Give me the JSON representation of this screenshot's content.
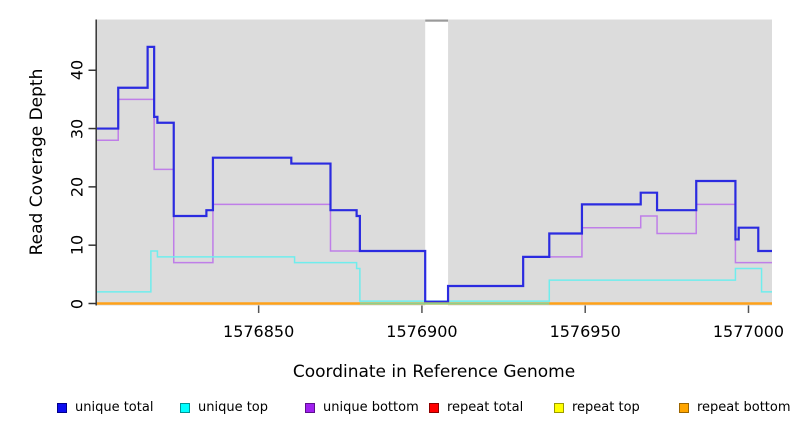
{
  "chart_data": {
    "type": "line",
    "subtype": "step",
    "xlabel": "Coordinate in Reference Genome",
    "ylabel": "Read Coverage Depth",
    "xlim": [
      1576800.5,
      1577007.2
    ],
    "ylim": [
      0,
      48.7
    ],
    "xticks": [
      1576850,
      1576900,
      1576950,
      1577000
    ],
    "yticks": [
      0,
      10,
      20,
      30,
      40
    ],
    "panel_bg": "#dcdcdc",
    "grid": false,
    "masked_region": {
      "x1": 1576901,
      "x2": 1576908,
      "color": "#ffffff",
      "top_edge_color": "#9a9a9a"
    },
    "series": [
      {
        "name": "repeat total",
        "color": "#ff0000",
        "width": 1.6,
        "steps": [
          [
            1576800,
            0
          ]
        ]
      },
      {
        "name": "repeat top",
        "color": "#ffff00",
        "width": 1.6,
        "steps": [
          [
            1576800,
            0
          ]
        ]
      },
      {
        "name": "unique bottom",
        "color": "#bf7ee8",
        "width": 1.5,
        "steps": [
          [
            1576800,
            28
          ],
          [
            1576807,
            35
          ],
          [
            1576818,
            23
          ],
          [
            1576824,
            7
          ],
          [
            1576836,
            17
          ],
          [
            1576872,
            9
          ],
          [
            1576901,
            0.3
          ],
          [
            1576908,
            3
          ],
          [
            1576931,
            8
          ],
          [
            1576949,
            13
          ],
          [
            1576967,
            15
          ],
          [
            1576972,
            12
          ],
          [
            1576984,
            17
          ],
          [
            1576996,
            7
          ]
        ]
      },
      {
        "name": "unique top",
        "color": "#6feded",
        "width": 1.5,
        "steps": [
          [
            1576800,
            2
          ],
          [
            1576817,
            9
          ],
          [
            1576819,
            8
          ],
          [
            1576861,
            7
          ],
          [
            1576880,
            6
          ],
          [
            1576881,
            0.4
          ],
          [
            1576939,
            4
          ],
          [
            1576996,
            6
          ],
          [
            1577004,
            2
          ]
        ]
      },
      {
        "name": "unique total",
        "color": "#2b2be0",
        "width": 2.2,
        "steps": [
          [
            1576800,
            30
          ],
          [
            1576807,
            37
          ],
          [
            1576816,
            44
          ],
          [
            1576818,
            32
          ],
          [
            1576819,
            31
          ],
          [
            1576824,
            15
          ],
          [
            1576834,
            16
          ],
          [
            1576836,
            25
          ],
          [
            1576860,
            24
          ],
          [
            1576872,
            16
          ],
          [
            1576880,
            15
          ],
          [
            1576881,
            9
          ],
          [
            1576901,
            0.3
          ],
          [
            1576908,
            3
          ],
          [
            1576931,
            8
          ],
          [
            1576939,
            12
          ],
          [
            1576949,
            17
          ],
          [
            1576967,
            19
          ],
          [
            1576972,
            16
          ],
          [
            1576984,
            21
          ],
          [
            1576996,
            11
          ],
          [
            1576997,
            13
          ],
          [
            1577003,
            9
          ]
        ]
      },
      {
        "name": "repeat bottom",
        "color": "#ffa11a",
        "width": 2.4,
        "steps": [
          [
            1576800,
            0
          ]
        ]
      }
    ],
    "blend_segment": {
      "x1": 1576881,
      "x2": 1576939,
      "value": 0,
      "color": "#8ccf8c",
      "width": 2
    }
  },
  "legend": {
    "items": [
      {
        "label": "unique total",
        "fill": "#0d0df0",
        "border": "#00008b"
      },
      {
        "label": "unique top",
        "fill": "#00ffff",
        "border": "#009595"
      },
      {
        "label": "unique bottom",
        "fill": "#a020f0",
        "border": "#5e0f8e"
      },
      {
        "label": "repeat total",
        "fill": "#ff0000",
        "border": "#8b0000"
      },
      {
        "label": "repeat top",
        "fill": "#ffff00",
        "border": "#9b9b00"
      },
      {
        "label": "repeat bottom",
        "fill": "#ffa500",
        "border": "#9c6500"
      }
    ]
  }
}
